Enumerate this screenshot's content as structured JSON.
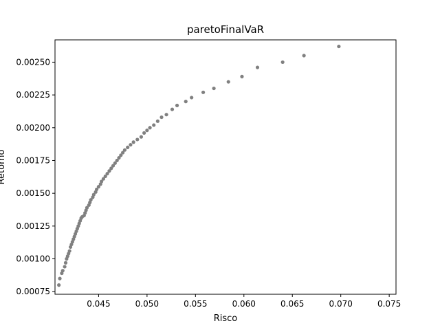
{
  "chart_data": {
    "type": "scatter",
    "title": "paretoFinalVaR",
    "xlabel": "Risco",
    "ylabel": "Retorno",
    "xlim": [
      0.0405,
      0.0757
    ],
    "ylim": [
      0.00073,
      0.00267
    ],
    "x_ticks": [
      0.045,
      0.05,
      0.055,
      0.06,
      0.065,
      0.07,
      0.075
    ],
    "x_tick_labels": [
      "0.045",
      "0.050",
      "0.055",
      "0.060",
      "0.065",
      "0.070",
      "0.075"
    ],
    "y_ticks": [
      0.00075,
      0.001,
      0.00125,
      0.0015,
      0.00175,
      0.002,
      0.00225,
      0.0025
    ],
    "y_tick_labels": [
      "0.00075",
      "0.00100",
      "0.00125",
      "0.00150",
      "0.00175",
      "0.00200",
      "0.00225",
      "0.00250"
    ],
    "grid": false,
    "marker_color": "#808080",
    "points": [
      [
        0.0409,
        0.0008
      ],
      [
        0.041,
        0.00085
      ],
      [
        0.0412,
        0.00089
      ],
      [
        0.0413,
        0.00091
      ],
      [
        0.0415,
        0.00094
      ],
      [
        0.0416,
        0.00097
      ],
      [
        0.0417,
        0.001
      ],
      [
        0.0418,
        0.00102
      ],
      [
        0.0419,
        0.00104
      ],
      [
        0.042,
        0.00106
      ],
      [
        0.0421,
        0.00109
      ],
      [
        0.0422,
        0.00111
      ],
      [
        0.0423,
        0.00113
      ],
      [
        0.0424,
        0.00115
      ],
      [
        0.0425,
        0.00117
      ],
      [
        0.0426,
        0.00119
      ],
      [
        0.0427,
        0.00121
      ],
      [
        0.0428,
        0.00123
      ],
      [
        0.0429,
        0.00125
      ],
      [
        0.043,
        0.00127
      ],
      [
        0.0431,
        0.00129
      ],
      [
        0.0432,
        0.00131
      ],
      [
        0.0433,
        0.00132
      ],
      [
        0.0435,
        0.00133
      ],
      [
        0.0436,
        0.00135
      ],
      [
        0.0437,
        0.00137
      ],
      [
        0.0438,
        0.00139
      ],
      [
        0.044,
        0.00141
      ],
      [
        0.0441,
        0.00143
      ],
      [
        0.0442,
        0.00145
      ],
      [
        0.0444,
        0.00147
      ],
      [
        0.0445,
        0.00149
      ],
      [
        0.0447,
        0.00151
      ],
      [
        0.0448,
        0.00153
      ],
      [
        0.045,
        0.00155
      ],
      [
        0.0452,
        0.00157
      ],
      [
        0.0453,
        0.00159
      ],
      [
        0.0455,
        0.00161
      ],
      [
        0.0457,
        0.00163
      ],
      [
        0.0459,
        0.00165
      ],
      [
        0.0461,
        0.00167
      ],
      [
        0.0463,
        0.00169
      ],
      [
        0.0465,
        0.00171
      ],
      [
        0.0467,
        0.00173
      ],
      [
        0.0469,
        0.00175
      ],
      [
        0.0471,
        0.00177
      ],
      [
        0.0473,
        0.00179
      ],
      [
        0.0475,
        0.00181
      ],
      [
        0.0477,
        0.00183
      ],
      [
        0.048,
        0.00185
      ],
      [
        0.0483,
        0.00187
      ],
      [
        0.0486,
        0.00189
      ],
      [
        0.049,
        0.00191
      ],
      [
        0.0494,
        0.00193
      ],
      [
        0.0497,
        0.00196
      ],
      [
        0.05,
        0.00198
      ],
      [
        0.0503,
        0.002
      ],
      [
        0.0507,
        0.00202
      ],
      [
        0.0511,
        0.00205
      ],
      [
        0.0515,
        0.00208
      ],
      [
        0.052,
        0.0021
      ],
      [
        0.0526,
        0.00214
      ],
      [
        0.0531,
        0.00217
      ],
      [
        0.054,
        0.0022
      ],
      [
        0.0546,
        0.00223
      ],
      [
        0.0558,
        0.00227
      ],
      [
        0.0569,
        0.0023
      ],
      [
        0.0584,
        0.00235
      ],
      [
        0.0598,
        0.00239
      ],
      [
        0.0614,
        0.00246
      ],
      [
        0.064,
        0.0025
      ],
      [
        0.0662,
        0.00255
      ],
      [
        0.0698,
        0.00262
      ]
    ]
  }
}
